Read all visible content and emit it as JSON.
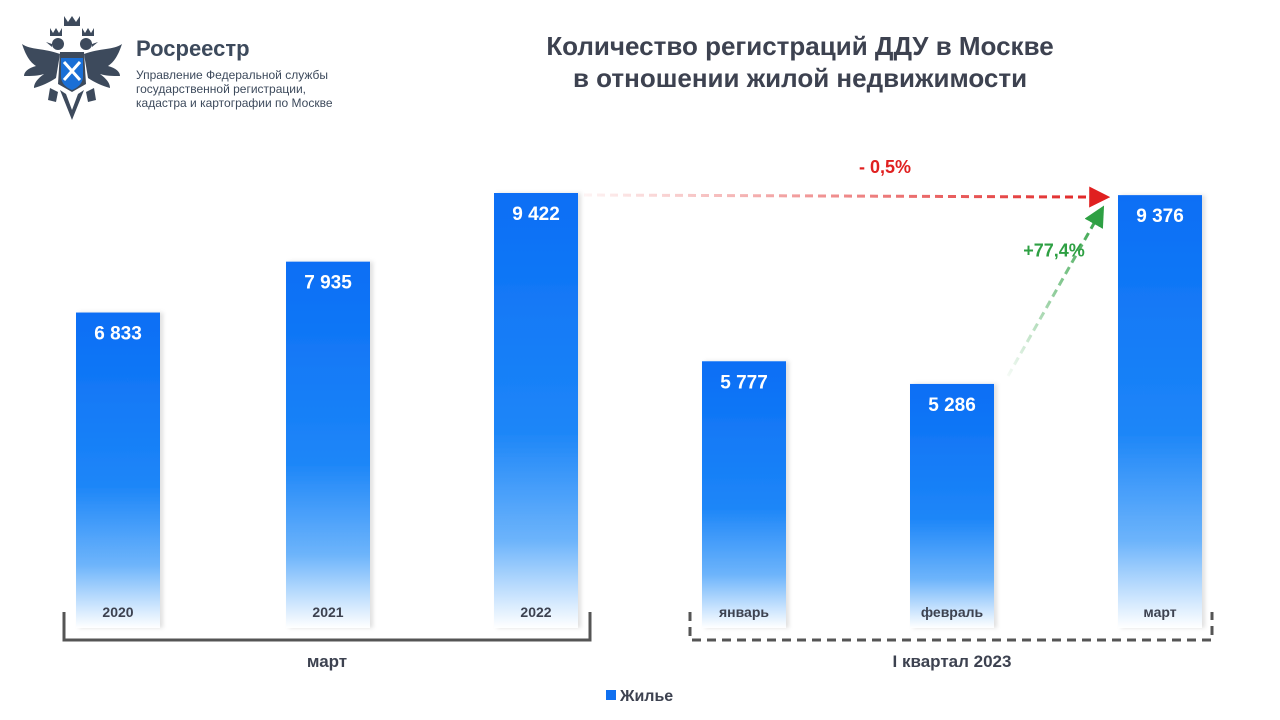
{
  "header": {
    "brand_name": "Росреестр",
    "brand_sub": [
      "Управление Федеральной службы",
      "государственной регистрации,",
      "кадастра и картографии по Москве"
    ],
    "title_line1": "Количество регистраций ДДУ в Москве",
    "title_line2": "в отношении жилой недвижимости"
  },
  "colors": {
    "bar_top": "#0a6ef5",
    "bar_bottom": "#ffffff",
    "bracket": "#555555",
    "decrease": "#e02020",
    "increase": "#2ea043",
    "logo": "#3d4a5c"
  },
  "icons": {
    "emblem": "double-headed-eagle-icon"
  },
  "chart_data": {
    "type": "bar",
    "title": "Количество регистраций ДДУ в Москве в отношении жилой недвижимости",
    "categories": [
      "2020",
      "2021",
      "2022",
      "январь",
      "февраль",
      "март"
    ],
    "series": [
      {
        "name": "Жилье",
        "values": [
          6833,
          7935,
          9422,
          5777,
          5286,
          9376
        ],
        "labels": [
          "6 833",
          "7 935",
          "9 422",
          "5 777",
          "5 286",
          "9 376"
        ]
      }
    ],
    "groups": [
      {
        "label": "март",
        "categories": [
          "2020",
          "2021",
          "2022"
        ],
        "style": "solid"
      },
      {
        "label": "I квартал 2023",
        "categories": [
          "январь",
          "февраль",
          "март"
        ],
        "style": "dashed"
      }
    ],
    "annotations": [
      {
        "text": "- 0,5%",
        "from": "2022",
        "to": "март",
        "kind": "decrease"
      },
      {
        "text": "+77,4%",
        "from": "февраль",
        "to": "март",
        "kind": "increase"
      }
    ],
    "legend": "bottom-center",
    "grid": false
  }
}
